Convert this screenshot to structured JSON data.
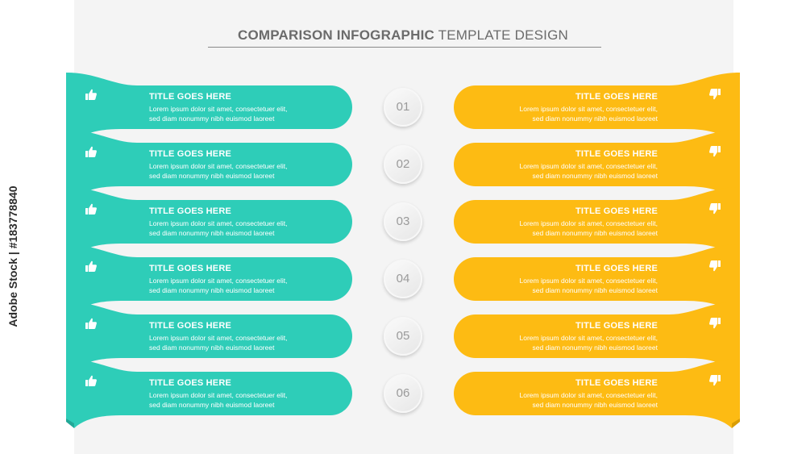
{
  "header": {
    "title_bold": "COMPARISON INFOGRAPHIC",
    "title_light": "TEMPLATE DESIGN"
  },
  "watermark": {
    "text": "Adobe Stock | #183778840"
  },
  "colors": {
    "left": "#2ecdb8",
    "left_dark": "#22a897",
    "right": "#fdbb13",
    "right_dark": "#d99d05"
  },
  "icons": {
    "left": "thumbs-up-icon",
    "right": "thumbs-down-icon"
  },
  "rows": [
    {
      "number": "01",
      "left": {
        "title": "TITLE GOES HERE",
        "line1": "Lorem ipsum dolor sit amet, consectetuer elit,",
        "line2": "sed diam nonummy nibh  euismod laoreet"
      },
      "right": {
        "title": "TITLE GOES HERE",
        "line1": "Lorem ipsum dolor sit amet, consectetuer elit,",
        "line2": "sed diam nonummy nibh  euismod laoreet"
      }
    },
    {
      "number": "02",
      "left": {
        "title": "TITLE GOES HERE",
        "line1": "Lorem ipsum dolor sit amet, consectetuer elit,",
        "line2": "sed diam nonummy nibh  euismod laoreet"
      },
      "right": {
        "title": "TITLE GOES HERE",
        "line1": "Lorem ipsum dolor sit amet, consectetuer elit,",
        "line2": "sed diam nonummy nibh  euismod laoreet"
      }
    },
    {
      "number": "03",
      "left": {
        "title": "TITLE GOES HERE",
        "line1": "Lorem ipsum dolor sit amet, consectetuer elit,",
        "line2": "sed diam nonummy nibh  euismod laoreet"
      },
      "right": {
        "title": "TITLE GOES HERE",
        "line1": "Lorem ipsum dolor sit amet, consectetuer elit,",
        "line2": "sed diam nonummy nibh  euismod laoreet"
      }
    },
    {
      "number": "04",
      "left": {
        "title": "TITLE GOES HERE",
        "line1": "Lorem ipsum dolor sit amet, consectetuer elit,",
        "line2": "sed diam nonummy nibh  euismod laoreet"
      },
      "right": {
        "title": "TITLE GOES HERE",
        "line1": "Lorem ipsum dolor sit amet, consectetuer elit,",
        "line2": "sed diam nonummy nibh  euismod laoreet"
      }
    },
    {
      "number": "05",
      "left": {
        "title": "TITLE GOES HERE",
        "line1": "Lorem ipsum dolor sit amet, consectetuer elit,",
        "line2": "sed diam nonummy nibh  euismod laoreet"
      },
      "right": {
        "title": "TITLE GOES HERE",
        "line1": "Lorem ipsum dolor sit amet, consectetuer elit,",
        "line2": "sed diam nonummy nibh  euismod laoreet"
      }
    },
    {
      "number": "06",
      "left": {
        "title": "TITLE GOES HERE",
        "line1": "Lorem ipsum dolor sit amet, consectetuer elit,",
        "line2": "sed diam nonummy nibh  euismod laoreet"
      },
      "right": {
        "title": "TITLE GOES HERE",
        "line1": "Lorem ipsum dolor sit amet, consectetuer elit,",
        "line2": "sed diam nonummy nibh  euismod laoreet"
      }
    }
  ]
}
